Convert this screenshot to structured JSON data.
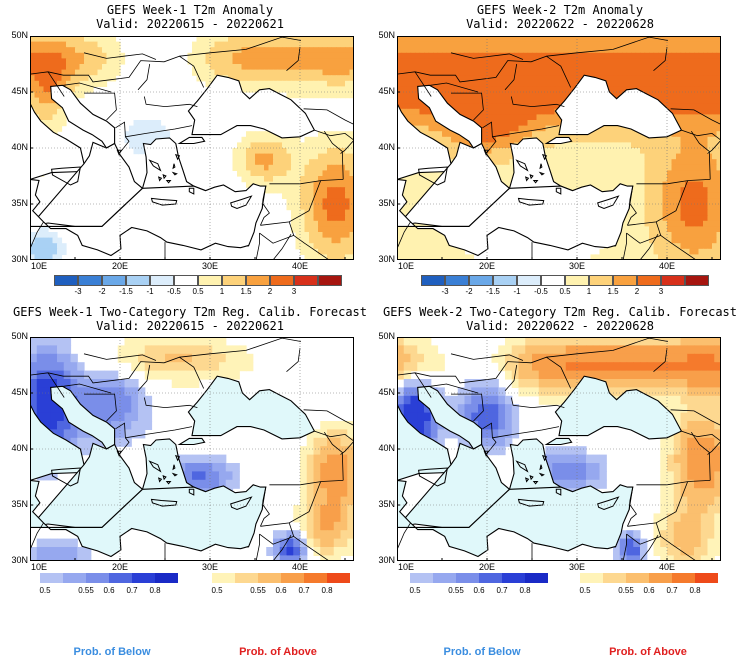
{
  "panels": [
    {
      "title1": "GEFS Week-1 T2m Anomaly",
      "title2": "Valid: 20220615 - 20220621",
      "kind": "anomaly",
      "week": 1
    },
    {
      "title1": "GEFS Week-2 T2m Anomaly",
      "title2": "Valid: 20220622 - 20220628",
      "kind": "anomaly",
      "week": 2
    },
    {
      "title1": "GEFS Week-1 Two-Category T2m Reg. Calib. Forecast",
      "title2": "Valid: 20220615 - 20220621",
      "kind": "prob",
      "week": 1
    },
    {
      "title1": "GEFS Week-2 Two-Category T2m Reg. Calib. Forecast",
      "title2": "Valid: 20220622 - 20220628",
      "kind": "prob",
      "week": 2
    }
  ],
  "lat_labels": [
    "50N",
    "45N",
    "40N",
    "35N",
    "30N"
  ],
  "lon_labels": [
    "10E",
    "20E",
    "30E",
    "40E"
  ],
  "anomaly_colorbar": {
    "labels": [
      "-3",
      "-2",
      "-1.5",
      "-1",
      "-0.5",
      "0.5",
      "1",
      "1.5",
      "2",
      "3"
    ],
    "colors": [
      "#1f5fbf",
      "#3a7fd5",
      "#6aa8e8",
      "#a9d1f4",
      "#dcedfb",
      "#ffffff",
      "#fff2b0",
      "#fdd27a",
      "#f8a13f",
      "#ee6b1c",
      "#d7301a",
      "#a6150f"
    ]
  },
  "below_colorbar": {
    "labels": [
      "0.5",
      "0.55",
      "0.6",
      "0.7",
      "0.8"
    ],
    "colors": [
      "#b4c2f3",
      "#96a8ef",
      "#7a8ee9",
      "#4f66e0",
      "#2a3fd6",
      "#1a2ac6"
    ]
  },
  "above_colorbar": {
    "labels": [
      "0.5",
      "0.55",
      "0.6",
      "0.7",
      "0.8"
    ],
    "colors": [
      "#fff3b8",
      "#fdd890",
      "#fbbf6e",
      "#f89f4a",
      "#f57a2c",
      "#ee4a1a"
    ]
  },
  "legend": {
    "below": "Prob. of Below",
    "above": "Prob. of Above",
    "below_color": "#3a8de0",
    "above_color": "#e02020"
  },
  "ocean_color": "#e0f8fa"
}
